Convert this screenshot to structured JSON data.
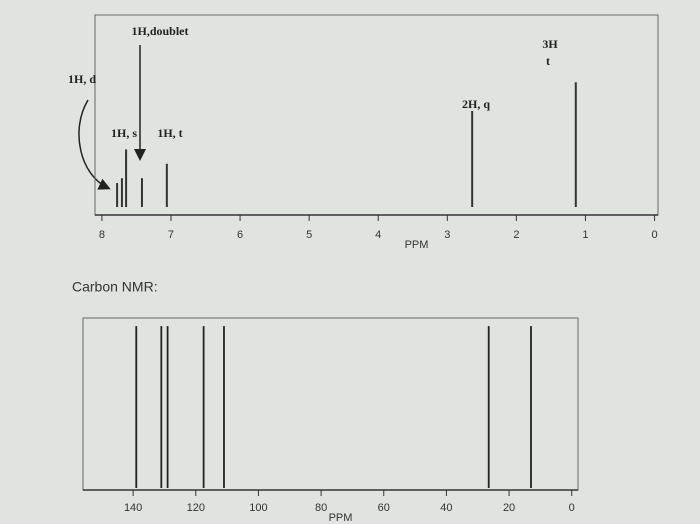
{
  "chart_data": [
    {
      "type": "stem",
      "x": [
        7.78,
        7.71,
        7.65,
        7.42,
        7.06,
        2.64,
        1.14
      ],
      "values": [
        25,
        30,
        60,
        30,
        45,
        100,
        130
      ],
      "color": "#333333",
      "xlim": [
        8.1,
        -0.05
      ],
      "ylim": [
        0,
        200
      ],
      "xticks": [
        8,
        7,
        6,
        5,
        4,
        3,
        2,
        1,
        0
      ],
      "x_label": "PPM",
      "annotations": [
        "1H,doublet",
        "3H",
        "t",
        "1H, d",
        "2H, q",
        "1H, s",
        "1H, t"
      ]
    },
    {
      "type": "stem",
      "title": "Carbon NMR:",
      "x": [
        139,
        131,
        129,
        117.5,
        111,
        26.5,
        13
      ],
      "values": [
        1,
        1,
        1,
        1,
        1,
        1,
        1
      ],
      "color": "#222222",
      "xlim": [
        156,
        -2
      ],
      "ylim": [
        0,
        1.05
      ],
      "xticks": [
        140,
        120,
        100,
        80,
        60,
        40,
        20,
        0
      ],
      "x_label": "PPM"
    }
  ]
}
